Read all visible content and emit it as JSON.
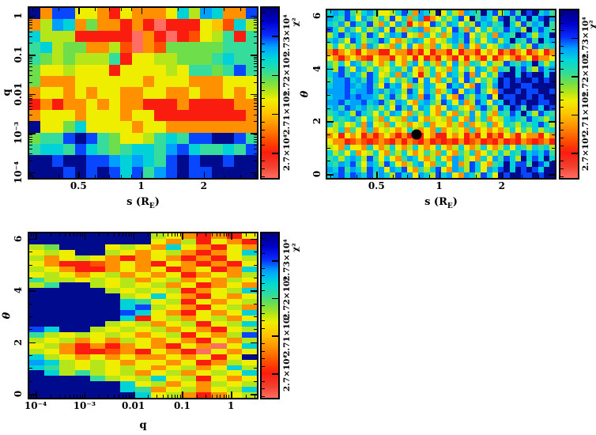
{
  "figure": {
    "background": "#ffffff"
  },
  "palette": {
    "0": "#ff6e62",
    "1": "#fb1c10",
    "2": "#ff4e00",
    "3": "#ff9000",
    "4": "#ffc300",
    "5": "#f0ee00",
    "6": "#b4e619",
    "7": "#6ede4b",
    "8": "#35dc9b",
    "9": "#00d2d8",
    "a": "#00a0ff",
    "b": "#0946ff",
    "c": "#000a8c"
  },
  "colorbar": {
    "title": "χ²",
    "stops": [
      {
        "p": 0,
        "c": "#000080"
      },
      {
        "p": 8,
        "c": "#0000c8"
      },
      {
        "p": 16,
        "c": "#0a2cff"
      },
      {
        "p": 23,
        "c": "#00a2ff"
      },
      {
        "p": 30,
        "c": "#00d8d8"
      },
      {
        "p": 37,
        "c": "#2edc9e"
      },
      {
        "p": 43,
        "c": "#6ede4b"
      },
      {
        "p": 49,
        "c": "#b4e619"
      },
      {
        "p": 54,
        "c": "#f0ee00"
      },
      {
        "p": 62,
        "c": "#ffc300"
      },
      {
        "p": 70,
        "c": "#ff8c00"
      },
      {
        "p": 78,
        "c": "#ff4e00"
      },
      {
        "p": 85,
        "c": "#fb1c10"
      },
      {
        "p": 93,
        "c": "#f3402e"
      },
      {
        "p": 100,
        "c": "#ff6e62"
      }
    ],
    "axis": {
      "scale": "linear",
      "min": 26935,
      "max": 27372,
      "minor_step": 20,
      "majors": [
        {
          "v": 27000,
          "label": "2.7×10⁴"
        },
        {
          "v": 27100,
          "label": "2.71×10⁴"
        },
        {
          "v": 27200,
          "label": "2.72×10⁴"
        },
        {
          "v": 27300,
          "label": "2.73×10⁴"
        }
      ]
    }
  },
  "chart_data": [
    {
      "id": "chi2-map-q-vs-s",
      "type": "heatmap",
      "xlabel": "s (R_E)",
      "ylabel": "q",
      "ylabel_italic": false,
      "x_axis": {
        "scale": "log",
        "min": 0.29,
        "max": 3.6,
        "minor_m": [
          1.5,
          2,
          2.5,
          3,
          4,
          5,
          6,
          7,
          8,
          9
        ],
        "majors": [
          {
            "v": 0.5,
            "label": "0.5"
          },
          {
            "v": 1,
            "label": "1"
          },
          {
            "v": 2,
            "label": "2"
          }
        ]
      },
      "y_axis": {
        "scale": "log",
        "min": 7.1e-05,
        "max": 1.585,
        "minor_m": [
          2,
          3,
          4,
          5,
          6,
          7,
          8,
          9
        ],
        "majors": [
          {
            "v": 1,
            "label": "1"
          },
          {
            "v": 0.1,
            "label": "0.1"
          },
          {
            "v": 0.01,
            "label": "0.01"
          },
          {
            "v": 0.001,
            "label": "10⁻³"
          },
          {
            "v": 0.0001,
            "label": "10⁻⁴"
          }
        ]
      },
      "grid": [
        "c3bb55315333596a933b",
        "36a93733131011154296",
        "96661111103101256818",
        "89677336203277777888",
        "87676668155667778988",
        "755655515555658878b8",
        "73335555553555333555",
        "35535355335533533535",
        "13133535331113111133",
        "35553555355111111113",
        "c5579555535533333333",
        "788bcb87556898bbccb8",
        "8998b9878998ab98898b",
        "ccbccbba9a98bcbccbcc",
        "cccbcbcb9b8abcbbcccc"
      ]
    },
    {
      "id": "chi2-map-theta-vs-s",
      "type": "heatmap",
      "xlabel": "s (R_E)",
      "ylabel": "θ",
      "ylabel_italic": true,
      "marker": {
        "s": 0.78,
        "theta": 1.5,
        "radius_px": 6.5,
        "color": "#000000"
      },
      "x_axis": {
        "scale": "log",
        "min": 0.29,
        "max": 3.6,
        "minor_m": [
          1.5,
          2,
          2.5,
          3,
          4,
          5,
          6,
          7,
          8,
          9
        ],
        "majors": [
          {
            "v": 0.5,
            "label": "0.5"
          },
          {
            "v": 1,
            "label": "1"
          },
          {
            "v": 2,
            "label": "2"
          }
        ]
      },
      "y_axis": {
        "scale": "linear",
        "min": -0.15,
        "max": 6.21,
        "minor_step": 0.5,
        "majors": [
          {
            "v": 0,
            "label": "0"
          },
          {
            "v": 2,
            "label": "2"
          },
          {
            "v": 4,
            "label": "4"
          },
          {
            "v": 6,
            "label": "6"
          }
        ]
      },
      "grid": [
        "9a9b869a85569b83a96c5963a98c9b69b8cbc9a8",
        "a98b95a8696b5938a135869b5c8a96bc8b9c9bca",
        "98a6b98b6395a81535b96a9586b9a89c96b8a9c8",
        "b96a85968a5b6389a36595b83a59698b9a6c9b98",
        "69b8a96b958a9b56395836a9b58693a98cb96a9c",
        "9a85b9689b95368a953569a8b6959a69c98b8c9a",
        "6958693a856395a536395693a539569a8696b989",
        "3135315331153313151331513315351313513513",
        "5313532153315351513153151531513531351335",
        "8695a9685369538a596395a63985966b98a9c969",
        "96b85a96965896a53695639585a96398c9b86b9a",
        "9ab8a96b95693a8516935a96b3a596bcc9cbcc9c",
        "8aab9a8b9695869b5a5396a5b95869cbcbccbcbc",
        "9aaba9ab85b9a5386a955b9a53b96acbccbbcccc",
        "aaab9aab9a8a96b95a8369b5a9b853bccbcbbccb",
        "9aababaa969b85a93b95a53b86a9b5cbbccbcbcc",
        "aab9aab9ab86a9539a86b95a36b95a9cbcbccbbc",
        "9a8ba9a89695b8a5a9535a96539b86b9cb8cb9cb",
        "89a96b98596a9538695395386a596398b9c96b98",
        "6989a8596395639a536563953a693569a98b9869",
        "9685693a56395635693553639356935986989b96",
        "5693853935653596353935653935353695869689",
        "3515351313531315153115351315131531533153",
        "5331232123213132131212131231213121321231",
        "6539553953695369535953695369536959869896",
        "9685935695386953586395386935869698b9a9b8",
        "8969a96b859538a9536953a965395a8b96c9b9c9",
        "98a9b85a96b95369a53895a36b95389c9bb8cb9c",
        "a9b8a96b9a5a9b53869b53a96b95a9bc9cbcb9cc",
        "9ab9ba9b8a96b9a5a96b9a53a96b95cbccbbcbcc"
      ]
    },
    {
      "id": "chi2-map-theta-vs-q",
      "type": "heatmap",
      "xlabel": "q",
      "ylabel": "θ",
      "ylabel_italic": true,
      "x_axis": {
        "scale": "log",
        "min": 7.4e-05,
        "max": 3.4,
        "minor_m": [
          2,
          3,
          4,
          5,
          6,
          7,
          8,
          9
        ],
        "majors": [
          {
            "v": 0.0001,
            "label": "10⁻⁴"
          },
          {
            "v": 0.001,
            "label": "10⁻³"
          },
          {
            "v": 0.01,
            "label": "0.01"
          },
          {
            "v": 0.1,
            "label": "0.1"
          },
          {
            "v": 1,
            "label": "1"
          }
        ]
      },
      "y_axis": {
        "scale": "linear",
        "min": -0.15,
        "max": 6.21,
        "minor_step": 0.5,
        "majors": [
          {
            "v": 0,
            "label": "0"
          },
          {
            "v": 2,
            "label": "2"
          },
          {
            "v": 4,
            "label": "4"
          },
          {
            "v": 6,
            "label": "6"
          }
        ]
      },
      "grid": [
        "cccccccc6531315",
        "cccccccc5361531",
        "67ccc5653953153",
        "565cc6535631359",
        "635653135313156",
        "531123531531315",
        "653113535135139",
        "565356353513536",
        "866565635635365",
        "68cc65656351353",
        "ccccc6565613569",
        "cccccc659531535",
        "cccccc985615356",
        "cccccc9b6531563",
        "ccccccb95315359",
        "cccccc915635635",
        "ccccc6563561569",
        "b9cc65656353156",
        "86565653561536b",
        "656353653531536",
        "563131353153059",
        "653112315310535",
        "96535353353515c",
        "a96565355351365",
        "986565653563596",
        "c96865635635659",
        "cccc86569561535",
        "cccccc956353656",
        "cccccc983563569",
        "ccccccc95631356"
      ]
    }
  ]
}
